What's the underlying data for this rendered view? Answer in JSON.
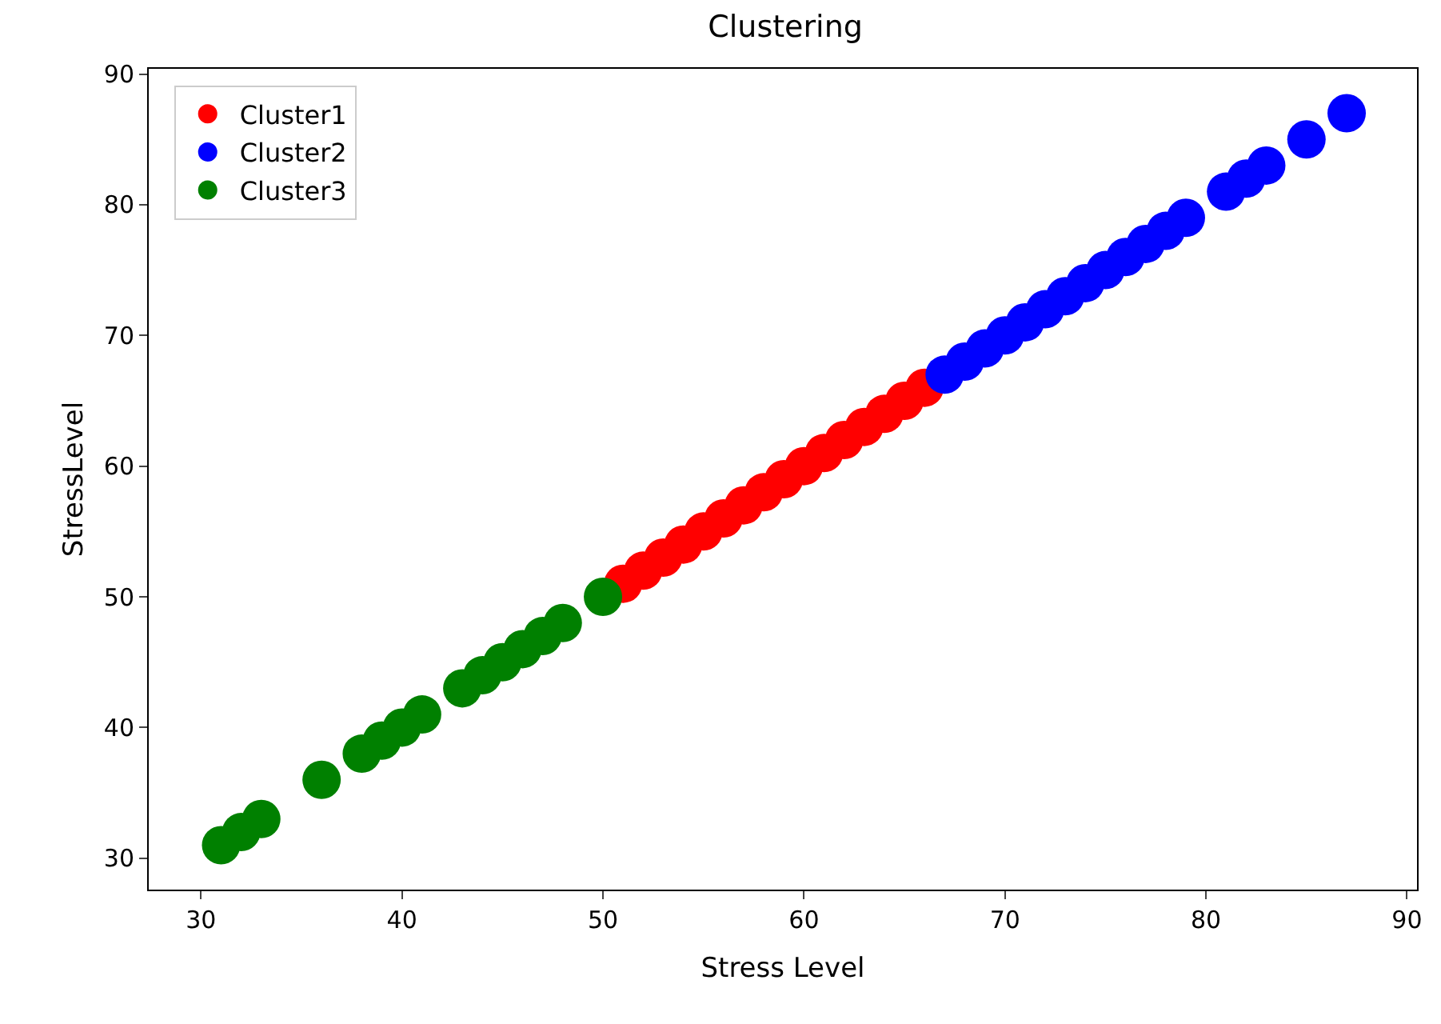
{
  "chart_data": {
    "type": "scatter",
    "title": "Clustering",
    "xlabel": "Stress Level",
    "ylabel": "StressLevel",
    "xlim": [
      27.4,
      90.5
    ],
    "ylim": [
      27.6,
      90.4
    ],
    "xticks": [
      30,
      40,
      50,
      60,
      70,
      80,
      90
    ],
    "yticks": [
      30,
      40,
      50,
      60,
      70,
      80,
      90
    ],
    "legend": "top left",
    "marker": "circle",
    "series": [
      {
        "name": "Cluster1",
        "color": "#ff0000",
        "x": [
          51,
          52,
          53,
          54,
          55,
          56,
          57,
          58,
          59,
          60,
          61,
          62,
          63,
          64,
          65,
          66
        ],
        "values": [
          51,
          52,
          53,
          54,
          55,
          56,
          57,
          58,
          59,
          60,
          61,
          62,
          63,
          64,
          65,
          66
        ]
      },
      {
        "name": "Cluster2",
        "color": "#0000ff",
        "x": [
          67,
          68,
          69,
          70,
          71,
          72,
          73,
          74,
          75,
          76,
          77,
          78,
          79,
          81,
          82,
          83,
          85,
          87
        ],
        "values": [
          67,
          68,
          69,
          70,
          71,
          72,
          73,
          74,
          75,
          76,
          77,
          78,
          79,
          81,
          82,
          83,
          85,
          87
        ]
      },
      {
        "name": "Cluster3",
        "color": "#008000",
        "x": [
          31,
          32,
          33,
          36,
          38,
          39,
          40,
          41,
          43,
          44,
          45,
          46,
          47,
          48,
          50
        ],
        "values": [
          31,
          32,
          33,
          36,
          38,
          39,
          40,
          41,
          43,
          44,
          45,
          46,
          47,
          48,
          50
        ]
      }
    ]
  }
}
